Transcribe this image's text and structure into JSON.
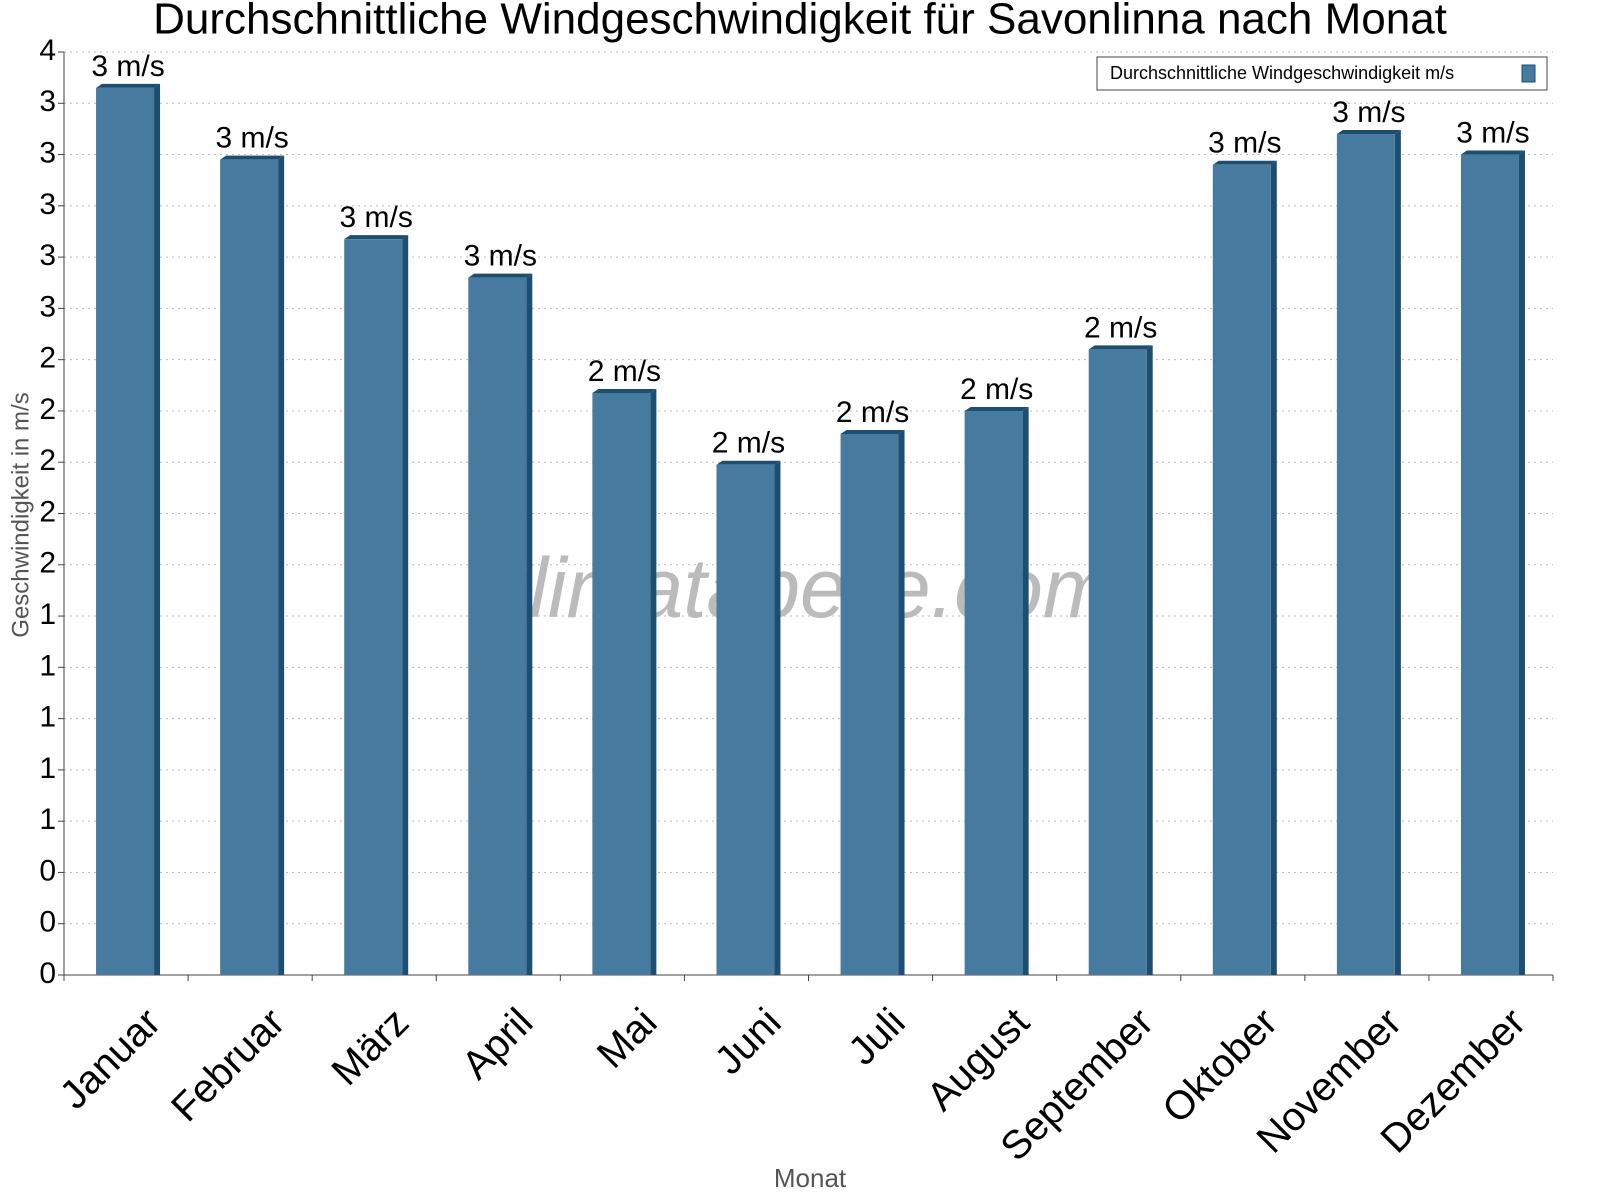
{
  "chart_data": {
    "type": "bar",
    "title": "Durchschnittliche Windgeschwindigkeit für Savonlinna nach Monat",
    "x_label": "Monat",
    "y_label": "Geschwindigkeit in m/s",
    "watermark": "klimatabelle.com",
    "categories": [
      "Januar",
      "Februar",
      "März",
      "April",
      "Mai",
      "Juni",
      "Juli",
      "August",
      "September",
      "Oktober",
      "November",
      "Dezember"
    ],
    "series": [
      {
        "name": "Durchschnittliche Windgeschwindigkeit m/s",
        "color": "#467a9e",
        "values": [
          3.46,
          3.18,
          2.87,
          2.72,
          2.27,
          1.99,
          2.11,
          2.2,
          2.44,
          3.16,
          3.28,
          3.2
        ],
        "value_labels": [
          "3 m/s",
          "3 m/s",
          "3 m/s",
          "3 m/s",
          "2 m/s",
          "2 m/s",
          "2 m/s",
          "2 m/s",
          "2 m/s",
          "3 m/s",
          "3 m/s",
          "3 m/s"
        ]
      }
    ],
    "ylim": [
      0,
      3.6
    ],
    "yticks": [
      0,
      {
        "value": 0.2,
        "label": "0"
      },
      {
        "value": 0.4,
        "label": "0"
      },
      {
        "value": 0.6,
        "label": "1"
      },
      {
        "value": 0.8,
        "label": "1"
      },
      1,
      {
        "value": 1.2,
        "label": "1"
      },
      {
        "value": 1.4,
        "label": "1"
      },
      {
        "value": 1.6,
        "label": "2"
      },
      {
        "value": 1.8,
        "label": "2"
      },
      2,
      {
        "value": 2.2,
        "label": "2"
      },
      {
        "value": 2.4,
        "label": "2"
      },
      {
        "value": 2.6,
        "label": "3"
      },
      {
        "value": 2.8,
        "label": "3"
      },
      3,
      {
        "value": 3.2,
        "label": "3"
      },
      {
        "value": 3.4,
        "label": "3"
      },
      {
        "value": 3.6,
        "label": "4"
      }
    ],
    "grid": true,
    "legend": "top-right"
  }
}
